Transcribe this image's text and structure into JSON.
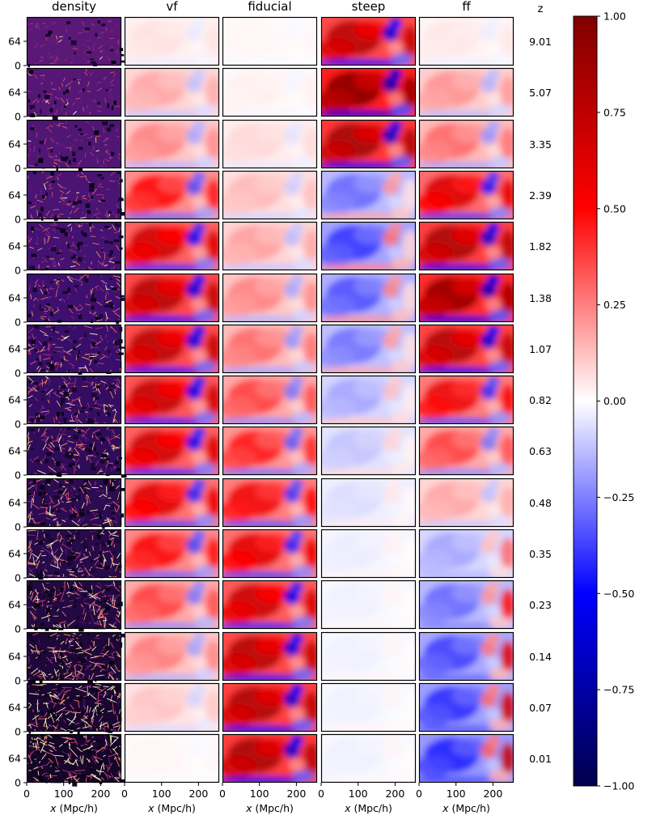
{
  "chart_data": {
    "type": "heatmap",
    "title": "",
    "columns": [
      "density",
      "vf",
      "fiducial",
      "steep",
      "ff"
    ],
    "redshift_header": "z",
    "redshifts": [
      "9.01",
      "5.07",
      "3.35",
      "2.39",
      "1.82",
      "1.38",
      "1.07",
      "0.82",
      "0.63",
      "0.48",
      "0.35",
      "0.23",
      "0.14",
      "0.07",
      "0.01"
    ],
    "x_ticks": [
      "0",
      "100",
      "200"
    ],
    "x_tick_values": [
      0,
      100,
      200
    ],
    "xlim": [
      0,
      256
    ],
    "y_ticks": [
      "0",
      "64"
    ],
    "y_tick_values": [
      0,
      64
    ],
    "ylim": [
      0,
      128
    ],
    "xlabel": "x (Mpc/h)",
    "xlabel_var": "x",
    "xlabel_unit": " (Mpc/h)",
    "colorbar": {
      "range": [
        -1.0,
        1.0
      ],
      "ticks": [
        "1.00",
        "0.75",
        "0.50",
        "0.25",
        "0.00",
        "−0.25",
        "−0.50",
        "−0.75",
        "−1.00"
      ],
      "tick_values": [
        1.0,
        0.75,
        0.5,
        0.25,
        0.0,
        -0.25,
        -0.5,
        -0.75,
        -1.0
      ],
      "colors": [
        "#00004c",
        "#0000ff",
        "#ffffff",
        "#ff0000",
        "#7f0000"
      ]
    },
    "density_colormap": [
      "#000004",
      "#3b0f70",
      "#8c2981",
      "#de4968",
      "#fe9f6d",
      "#fcfdbf"
    ],
    "field_amplitude_by_row": {
      "vf": [
        0.06,
        0.18,
        0.25,
        0.5,
        0.7,
        0.8,
        0.78,
        0.74,
        0.7,
        0.62,
        0.52,
        0.38,
        0.26,
        0.12,
        0.02
      ],
      "fiducial": [
        0.02,
        0.03,
        0.08,
        0.14,
        0.19,
        0.25,
        0.3,
        0.38,
        0.46,
        0.56,
        0.62,
        0.72,
        0.8,
        0.84,
        0.86
      ],
      "steep": [
        0.8,
        0.98,
        0.88,
        -0.3,
        -0.4,
        -0.35,
        -0.28,
        -0.18,
        -0.12,
        -0.07,
        -0.04,
        -0.03,
        -0.03,
        -0.03,
        -0.03
      ],
      "ff": [
        0.05,
        0.22,
        0.3,
        0.65,
        0.85,
        0.92,
        0.82,
        0.58,
        0.38,
        0.18,
        -0.18,
        -0.3,
        -0.38,
        -0.42,
        -0.45
      ]
    }
  }
}
